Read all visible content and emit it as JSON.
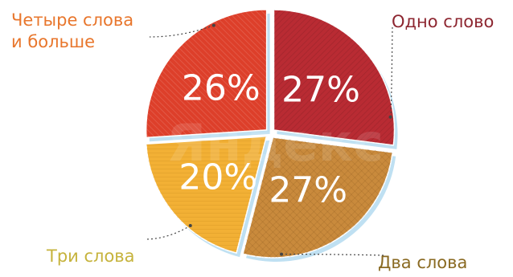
{
  "chart_data": {
    "type": "pie",
    "slices": [
      {
        "label": "Одно слово",
        "value": 27,
        "value_label": "27%",
        "color": "#b92b33"
      },
      {
        "label": "Два слова",
        "value": 27,
        "value_label": "27%",
        "color": "#c98a3c"
      },
      {
        "label": "Три слова",
        "value": 20,
        "value_label": "20%",
        "color": "#f2b035"
      },
      {
        "label": "Четыре слова и больше",
        "label_lines": [
          "Четыре слова",
          "и больше"
        ],
        "value": 26,
        "value_label": "26%",
        "color": "#dd3f2a"
      }
    ],
    "label_colors": [
      "#8d2630",
      "#8a6a22",
      "#c6b33c",
      "#e8762c"
    ],
    "watermark": "Яндекс",
    "legend": "none",
    "start_angle_deg": 0,
    "direction": "clockwise"
  }
}
